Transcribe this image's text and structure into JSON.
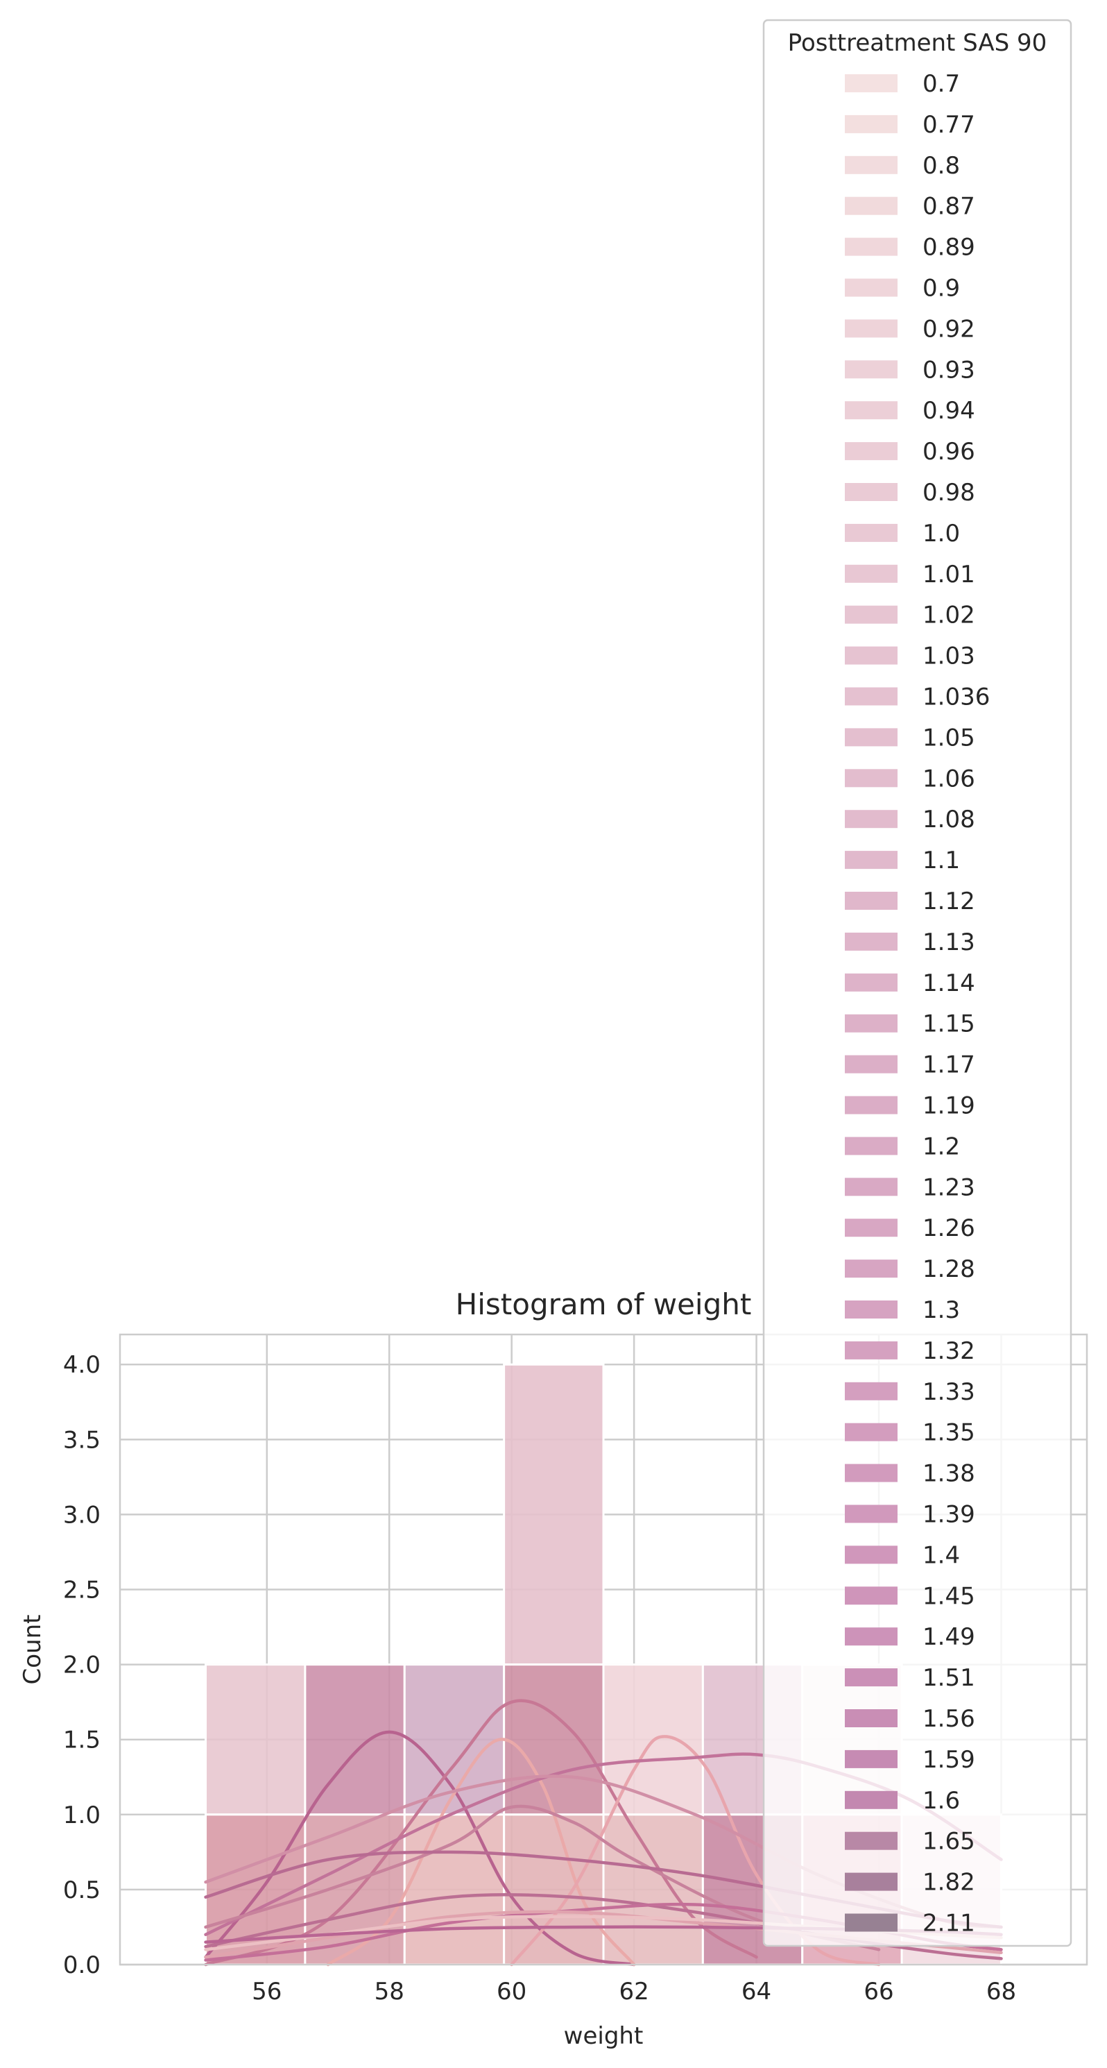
{
  "chart_data": {
    "type": "histogram",
    "title": "Histogram of weight",
    "xlabel": "weight",
    "ylabel": "Count",
    "xlim": [
      53.6,
      69.4
    ],
    "ylim": [
      0,
      4.2
    ],
    "xticks": [
      56,
      58,
      60,
      62,
      64,
      66,
      68
    ],
    "yticks": [
      0.0,
      0.5,
      1.0,
      1.5,
      2.0,
      2.5,
      3.0,
      3.5,
      4.0
    ],
    "ytick_labels": [
      "0.0",
      "0.5",
      "1.0",
      "1.5",
      "2.0",
      "2.5",
      "3.0",
      "3.5",
      "4.0"
    ],
    "grid": true,
    "legend_position": "top-right",
    "bin_edges": [
      55.0,
      56.625,
      58.25,
      59.875,
      61.5,
      63.125,
      64.75,
      66.375,
      68.0
    ],
    "bars": [
      {
        "bin": 0,
        "y0": 1,
        "y1": 2,
        "color": "#e6c3cd",
        "opacity": 0.85
      },
      {
        "bin": 0,
        "y0": 0,
        "y1": 1,
        "color": "#d89aa6",
        "opacity": 0.9
      },
      {
        "bin": 1,
        "y0": 1,
        "y1": 2,
        "color": "#c98aa6",
        "opacity": 0.85
      },
      {
        "bin": 1,
        "y0": 0,
        "y1": 1,
        "color": "#d8a0ab",
        "opacity": 0.9
      },
      {
        "bin": 2,
        "y0": 1,
        "y1": 2,
        "color": "#cfa9c2",
        "opacity": 0.85
      },
      {
        "bin": 2,
        "y0": 0,
        "y1": 1,
        "color": "#e7b9ba",
        "opacity": 0.9
      },
      {
        "bin": 3,
        "y0": 2,
        "y1": 4,
        "color": "#e6c1cc",
        "opacity": 0.9
      },
      {
        "bin": 3,
        "y0": 1,
        "y1": 2,
        "color": "#cd8fa3",
        "opacity": 0.9
      },
      {
        "bin": 3,
        "y0": 0,
        "y1": 1,
        "color": "#e2b3b6",
        "opacity": 0.9
      },
      {
        "bin": 4,
        "y0": 1,
        "y1": 2,
        "color": "#f1d5d9",
        "opacity": 0.9
      },
      {
        "bin": 4,
        "y0": 0,
        "y1": 1,
        "color": "#e5bcbf",
        "opacity": 0.9
      },
      {
        "bin": 5,
        "y0": 1,
        "y1": 2,
        "color": "#dfbccc",
        "opacity": 0.85
      },
      {
        "bin": 5,
        "y0": 0,
        "y1": 1,
        "color": "#c98aa3",
        "opacity": 0.9
      },
      {
        "bin": 6,
        "y0": 1,
        "y1": 2,
        "color": "#f5e6ea",
        "opacity": 0.9
      },
      {
        "bin": 6,
        "y0": 0,
        "y1": 1,
        "color": "#e1a8b8",
        "opacity": 0.9
      },
      {
        "bin": 7,
        "y0": 0,
        "y1": 1,
        "color": "#f2dbe1",
        "opacity": 0.9
      }
    ],
    "kde_curves": [
      {
        "color": "#b8638f",
        "points": [
          [
            55,
            0.05
          ],
          [
            56,
            0.55
          ],
          [
            57,
            1.2
          ],
          [
            58,
            1.55
          ],
          [
            59,
            1.2
          ],
          [
            60,
            0.45
          ],
          [
            61,
            0.08
          ],
          [
            62,
            0.0
          ]
        ]
      },
      {
        "color": "#c77895",
        "points": [
          [
            55,
            0.0
          ],
          [
            57,
            0.3
          ],
          [
            59,
            1.3
          ],
          [
            60,
            1.75
          ],
          [
            61,
            1.55
          ],
          [
            62,
            0.9
          ],
          [
            63,
            0.3
          ],
          [
            64,
            0.05
          ]
        ]
      },
      {
        "color": "#eaa9a9",
        "points": [
          [
            57,
            0.0
          ],
          [
            58,
            0.3
          ],
          [
            59,
            1.1
          ],
          [
            59.8,
            1.5
          ],
          [
            60.5,
            1.2
          ],
          [
            61.2,
            0.4
          ],
          [
            62,
            0.0
          ]
        ]
      },
      {
        "color": "#e8a5ad",
        "points": [
          [
            60,
            0.0
          ],
          [
            61,
            0.5
          ],
          [
            62,
            1.3
          ],
          [
            62.5,
            1.52
          ],
          [
            63.2,
            1.3
          ],
          [
            64,
            0.6
          ],
          [
            65,
            0.1
          ],
          [
            66,
            0.0
          ]
        ]
      },
      {
        "color": "#c2739a",
        "points": [
          [
            55,
            0.2
          ],
          [
            57,
            0.6
          ],
          [
            59,
            1.0
          ],
          [
            61,
            1.3
          ],
          [
            63,
            1.38
          ],
          [
            64,
            1.4
          ],
          [
            65,
            1.32
          ],
          [
            66.5,
            1.1
          ],
          [
            68,
            0.7
          ]
        ]
      },
      {
        "color": "#d18fa6",
        "points": [
          [
            55,
            0.55
          ],
          [
            57,
            0.85
          ],
          [
            59,
            1.15
          ],
          [
            61,
            1.25
          ],
          [
            63,
            1.0
          ],
          [
            65,
            0.6
          ],
          [
            67,
            0.3
          ],
          [
            68,
            0.25
          ]
        ]
      },
      {
        "color": "#c8829c",
        "points": [
          [
            55,
            0.25
          ],
          [
            57,
            0.5
          ],
          [
            59,
            0.8
          ],
          [
            60,
            1.05
          ],
          [
            61,
            0.95
          ],
          [
            62,
            0.7
          ],
          [
            64,
            0.3
          ],
          [
            66,
            0.1
          ]
        ]
      },
      {
        "color": "#b86b92",
        "points": [
          [
            55,
            0.45
          ],
          [
            57,
            0.7
          ],
          [
            59,
            0.75
          ],
          [
            61,
            0.7
          ],
          [
            63,
            0.6
          ],
          [
            65,
            0.45
          ],
          [
            67,
            0.3
          ],
          [
            68,
            0.25
          ]
        ]
      },
      {
        "color": "#bb6f93",
        "points": [
          [
            55,
            0.12
          ],
          [
            57,
            0.3
          ],
          [
            59,
            0.45
          ],
          [
            61,
            0.45
          ],
          [
            63,
            0.35
          ],
          [
            65,
            0.2
          ],
          [
            67,
            0.08
          ],
          [
            68,
            0.04
          ]
        ]
      },
      {
        "color": "#c46f98",
        "points": [
          [
            55,
            0.03
          ],
          [
            57,
            0.12
          ],
          [
            59,
            0.28
          ],
          [
            61,
            0.36
          ],
          [
            63,
            0.4
          ],
          [
            65,
            0.3
          ],
          [
            67,
            0.15
          ],
          [
            68,
            0.1
          ]
        ]
      },
      {
        "color": "#e0a3ae",
        "points": [
          [
            55,
            0.05
          ],
          [
            57,
            0.18
          ],
          [
            59,
            0.32
          ],
          [
            61,
            0.35
          ],
          [
            63,
            0.28
          ],
          [
            65,
            0.2
          ],
          [
            67,
            0.12
          ],
          [
            68,
            0.08
          ]
        ]
      },
      {
        "color": "#ecc0c4",
        "points": [
          [
            55,
            0.1
          ],
          [
            57,
            0.2
          ],
          [
            59,
            0.3
          ],
          [
            61,
            0.32
          ],
          [
            63,
            0.3
          ],
          [
            65,
            0.25
          ],
          [
            67,
            0.2
          ],
          [
            68,
            0.18
          ]
        ]
      },
      {
        "color": "#b96593",
        "points": [
          [
            55,
            0.15
          ],
          [
            57,
            0.2
          ],
          [
            59,
            0.24
          ],
          [
            61,
            0.25
          ],
          [
            63,
            0.25
          ],
          [
            65,
            0.24
          ],
          [
            67,
            0.22
          ],
          [
            68,
            0.2
          ]
        ]
      }
    ],
    "legend": {
      "title": "Posttreatment SAS 90",
      "entries": [
        {
          "label": "0.7",
          "color": "#f4e1e1"
        },
        {
          "label": "0.77",
          "color": "#f3dfdf"
        },
        {
          "label": "0.8",
          "color": "#f2dcde"
        },
        {
          "label": "0.87",
          "color": "#f1dadc"
        },
        {
          "label": "0.89",
          "color": "#f0d7db"
        },
        {
          "label": "0.9",
          "color": "#efd5da"
        },
        {
          "label": "0.92",
          "color": "#eed3d9"
        },
        {
          "label": "0.93",
          "color": "#edd1d8"
        },
        {
          "label": "0.94",
          "color": "#eccfd7"
        },
        {
          "label": "0.96",
          "color": "#ebcdd6"
        },
        {
          "label": "0.98",
          "color": "#eacbd5"
        },
        {
          "label": "1.0",
          "color": "#e9c9d4"
        },
        {
          "label": "1.01",
          "color": "#e8c7d3"
        },
        {
          "label": "1.02",
          "color": "#e7c5d2"
        },
        {
          "label": "1.03",
          "color": "#e6c3d1"
        },
        {
          "label": "1.036",
          "color": "#e5c1d0"
        },
        {
          "label": "1.05",
          "color": "#e4bfcf"
        },
        {
          "label": "1.06",
          "color": "#e3bdce"
        },
        {
          "label": "1.08",
          "color": "#e2bbcd"
        },
        {
          "label": "1.1",
          "color": "#e1b9cc"
        },
        {
          "label": "1.12",
          "color": "#e0b7cb"
        },
        {
          "label": "1.13",
          "color": "#dfb5ca"
        },
        {
          "label": "1.14",
          "color": "#deb3c9"
        },
        {
          "label": "1.15",
          "color": "#ddb1c8"
        },
        {
          "label": "1.17",
          "color": "#dcafc7"
        },
        {
          "label": "1.19",
          "color": "#dbadc6"
        },
        {
          "label": "1.2",
          "color": "#daabc5"
        },
        {
          "label": "1.23",
          "color": "#d9a9c4"
        },
        {
          "label": "1.26",
          "color": "#d8a7c3"
        },
        {
          "label": "1.28",
          "color": "#d7a5c2"
        },
        {
          "label": "1.3",
          "color": "#d6a3c1"
        },
        {
          "label": "1.32",
          "color": "#d5a1c0"
        },
        {
          "label": "1.33",
          "color": "#d49fbf"
        },
        {
          "label": "1.35",
          "color": "#d39dbe"
        },
        {
          "label": "1.38",
          "color": "#d29bbd"
        },
        {
          "label": "1.39",
          "color": "#d199bc"
        },
        {
          "label": "1.4",
          "color": "#d097bb"
        },
        {
          "label": "1.45",
          "color": "#cf95ba"
        },
        {
          "label": "1.49",
          "color": "#cd93b9"
        },
        {
          "label": "1.51",
          "color": "#cb90b7"
        },
        {
          "label": "1.56",
          "color": "#c98eb5"
        },
        {
          "label": "1.59",
          "color": "#c68bb3"
        },
        {
          "label": "1.6",
          "color": "#c388b0"
        },
        {
          "label": "1.65",
          "color": "#b888a6"
        },
        {
          "label": "1.82",
          "color": "#a8809c"
        },
        {
          "label": "2.11",
          "color": "#978193"
        }
      ]
    }
  }
}
